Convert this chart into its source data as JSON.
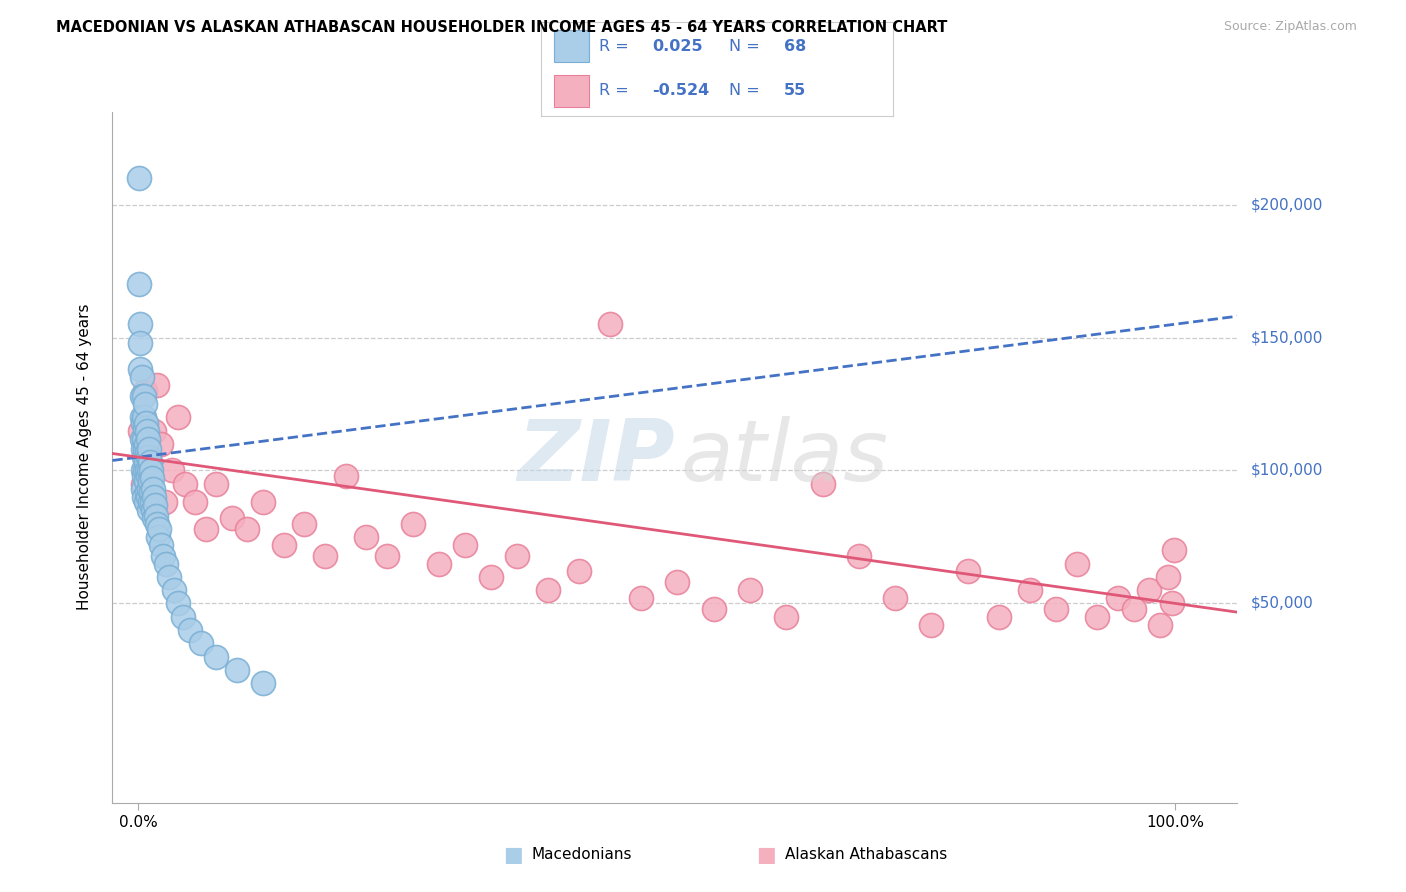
{
  "title": "MACEDONIAN VS ALASKAN ATHABASCAN HOUSEHOLDER INCOME AGES 45 - 64 YEARS CORRELATION CHART",
  "source": "Source: ZipAtlas.com",
  "ylabel": "Householder Income Ages 45 - 64 years",
  "ytick_labels": [
    "$50,000",
    "$100,000",
    "$150,000",
    "$200,000"
  ],
  "ytick_values": [
    50000,
    100000,
    150000,
    200000
  ],
  "ylim": [
    -25000,
    235000
  ],
  "xlim": [
    -0.025,
    1.06
  ],
  "macedonian_color": "#aacde8",
  "macedonian_edge": "#7aafd4",
  "athabascan_color": "#f5b0bf",
  "athabascan_edge": "#e8809a",
  "trend_macedonian_color": "#4472c4",
  "trend_athabascan_color": "#e05878",
  "label_color": "#4472c4",
  "R_mac": 0.025,
  "N_mac": 68,
  "R_ath": -0.524,
  "N_ath": 55,
  "mac_x": [
    0.001,
    0.001,
    0.002,
    0.002,
    0.002,
    0.003,
    0.003,
    0.003,
    0.003,
    0.004,
    0.004,
    0.004,
    0.004,
    0.005,
    0.005,
    0.005,
    0.005,
    0.005,
    0.005,
    0.006,
    0.006,
    0.006,
    0.006,
    0.007,
    0.007,
    0.007,
    0.007,
    0.007,
    0.008,
    0.008,
    0.008,
    0.008,
    0.009,
    0.009,
    0.009,
    0.009,
    0.01,
    0.01,
    0.01,
    0.01,
    0.011,
    0.011,
    0.011,
    0.012,
    0.012,
    0.013,
    0.013,
    0.014,
    0.014,
    0.015,
    0.015,
    0.016,
    0.017,
    0.018,
    0.019,
    0.02,
    0.022,
    0.024,
    0.027,
    0.03,
    0.034,
    0.038,
    0.043,
    0.05,
    0.06,
    0.075,
    0.095,
    0.12
  ],
  "mac_y": [
    210000,
    170000,
    155000,
    148000,
    138000,
    135000,
    128000,
    120000,
    112000,
    118000,
    108000,
    100000,
    93000,
    128000,
    120000,
    112000,
    105000,
    98000,
    90000,
    125000,
    116000,
    108000,
    100000,
    118000,
    110000,
    103000,
    96000,
    88000,
    115000,
    107000,
    100000,
    92000,
    112000,
    105000,
    98000,
    90000,
    108000,
    100000,
    93000,
    85000,
    103000,
    96000,
    88000,
    100000,
    92000,
    97000,
    88000,
    93000,
    85000,
    90000,
    82000,
    87000,
    83000,
    80000,
    75000,
    78000,
    72000,
    68000,
    65000,
    60000,
    55000,
    50000,
    45000,
    40000,
    35000,
    30000,
    25000,
    20000
  ],
  "ath_x": [
    0.002,
    0.004,
    0.006,
    0.008,
    0.01,
    0.012,
    0.015,
    0.018,
    0.022,
    0.026,
    0.032,
    0.038,
    0.045,
    0.055,
    0.065,
    0.075,
    0.09,
    0.105,
    0.12,
    0.14,
    0.16,
    0.18,
    0.2,
    0.22,
    0.24,
    0.265,
    0.29,
    0.315,
    0.34,
    0.365,
    0.395,
    0.425,
    0.455,
    0.485,
    0.52,
    0.555,
    0.59,
    0.625,
    0.66,
    0.695,
    0.73,
    0.765,
    0.8,
    0.83,
    0.86,
    0.885,
    0.905,
    0.925,
    0.945,
    0.96,
    0.975,
    0.985,
    0.993,
    0.997,
    0.999
  ],
  "ath_y": [
    115000,
    95000,
    130000,
    88000,
    105000,
    92000,
    115000,
    132000,
    110000,
    88000,
    100000,
    120000,
    95000,
    88000,
    78000,
    95000,
    82000,
    78000,
    88000,
    72000,
    80000,
    68000,
    98000,
    75000,
    68000,
    80000,
    65000,
    72000,
    60000,
    68000,
    55000,
    62000,
    155000,
    52000,
    58000,
    48000,
    55000,
    45000,
    95000,
    68000,
    52000,
    42000,
    62000,
    45000,
    55000,
    48000,
    65000,
    45000,
    52000,
    48000,
    55000,
    42000,
    60000,
    50000,
    70000
  ]
}
